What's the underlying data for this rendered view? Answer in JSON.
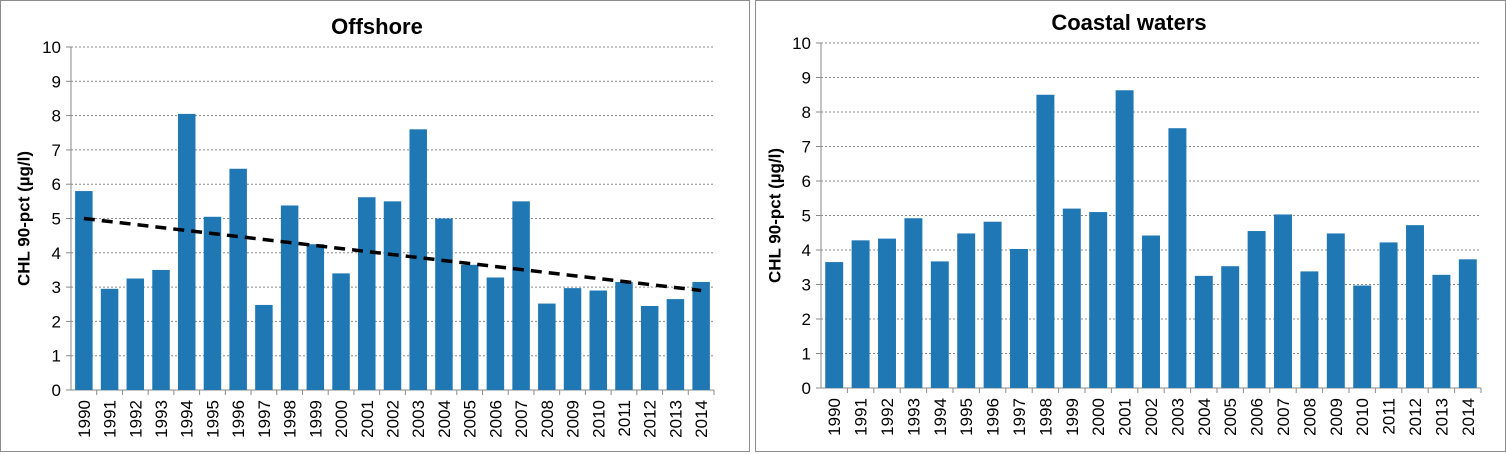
{
  "chart_data": [
    {
      "type": "bar",
      "title": "Offshore",
      "ylabel": "CHL 90-pct (µg/l)",
      "xlabel": "",
      "ylim": [
        0,
        10
      ],
      "yticks": [
        0,
        1,
        2,
        3,
        4,
        5,
        6,
        7,
        8,
        9,
        10
      ],
      "grid": "horizontal dashed",
      "bar_color": "#1f78b4",
      "categories": [
        "1990",
        "1991",
        "1992",
        "1993",
        "1994",
        "1995",
        "1996",
        "1997",
        "1998",
        "1999",
        "2000",
        "2001",
        "2002",
        "2003",
        "2004",
        "2005",
        "2006",
        "2007",
        "2008",
        "2009",
        "2010",
        "2011",
        "2012",
        "2013",
        "2014"
      ],
      "values": [
        5.8,
        2.95,
        3.25,
        3.5,
        8.05,
        5.05,
        6.45,
        2.48,
        5.38,
        4.25,
        3.4,
        5.62,
        5.5,
        7.6,
        5.0,
        3.65,
        3.28,
        5.5,
        2.52,
        2.97,
        2.9,
        3.15,
        2.45,
        2.65,
        3.15
      ],
      "trendline": {
        "style": "dashed",
        "color": "#000000",
        "start": {
          "x": "1990",
          "y": 5.0
        },
        "end": {
          "x": "2014",
          "y": 2.9
        }
      }
    },
    {
      "type": "bar",
      "title": "Coastal waters",
      "ylabel": "CHL 90-pct (µg/l)",
      "xlabel": "",
      "ylim": [
        0,
        10
      ],
      "yticks": [
        0,
        1,
        2,
        3,
        4,
        5,
        6,
        7,
        8,
        9,
        10
      ],
      "grid": "horizontal dashed",
      "bar_color": "#1f78b4",
      "categories": [
        "1990",
        "1991",
        "1992",
        "1993",
        "1994",
        "1995",
        "1996",
        "1997",
        "1998",
        "1999",
        "2000",
        "2001",
        "2002",
        "2003",
        "2004",
        "2005",
        "2006",
        "2007",
        "2008",
        "2009",
        "2010",
        "2011",
        "2012",
        "2013",
        "2014"
      ],
      "values": [
        3.65,
        4.28,
        4.33,
        4.92,
        3.67,
        4.48,
        4.82,
        4.03,
        8.5,
        5.2,
        5.1,
        8.63,
        4.42,
        7.53,
        3.25,
        3.53,
        4.55,
        5.03,
        3.38,
        4.48,
        2.97,
        4.22,
        4.72,
        3.28,
        3.73
      ]
    }
  ]
}
